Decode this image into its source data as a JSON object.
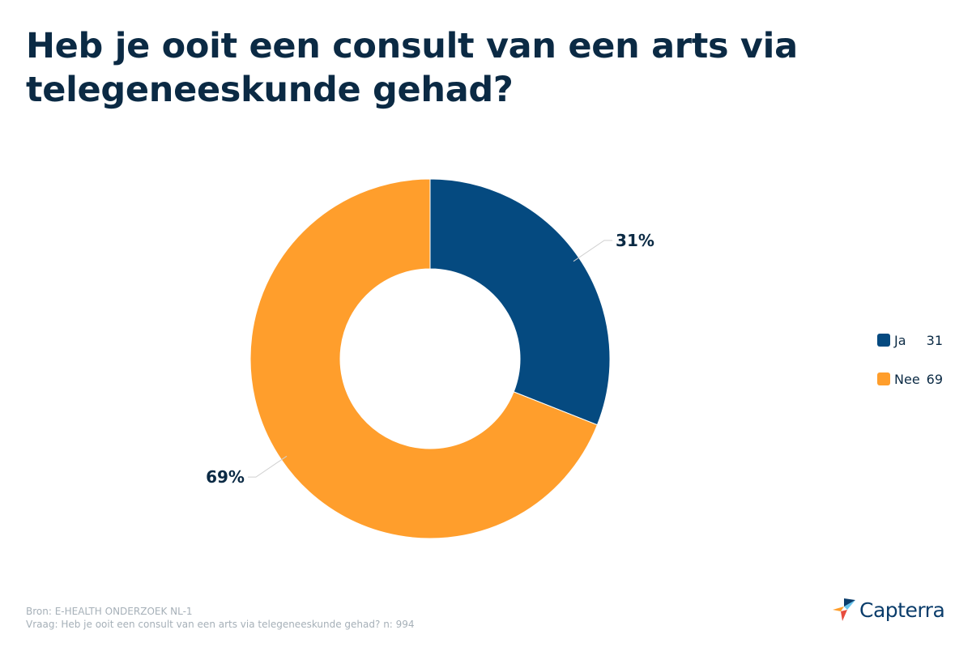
{
  "title": "Heb je ooit een consult van een arts via telegeneeskunde gehad?",
  "chart_data": {
    "type": "pie",
    "donut": true,
    "slices": [
      {
        "label": "Ja",
        "value": 31,
        "display": "31%",
        "color": "#054a80"
      },
      {
        "label": "Nee",
        "value": 69,
        "display": "69%",
        "color": "#ff9e2c"
      }
    ],
    "legend": {
      "position": "right"
    }
  },
  "footer": {
    "source": "Bron: E-HEALTH ONDERZOEK NL-1",
    "question": "Vraag: Heb je ooit een consult van een arts via telegeneeskunde gehad? n: 994"
  },
  "logo": {
    "text": "Capterra",
    "icon": "capterra-logo-icon"
  }
}
